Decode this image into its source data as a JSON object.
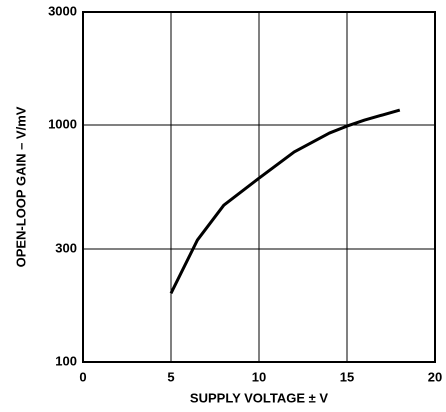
{
  "chart_data": {
    "type": "line",
    "x_label": "SUPPLY VOLTAGE ± V",
    "y_label": "OPEN-LOOP GAIN – V/mV",
    "x": [
      5,
      6.5,
      8,
      10,
      12,
      14,
      15,
      16,
      18
    ],
    "series": [
      {
        "color": "#000000",
        "values": [
          195,
          327,
          459,
          597,
          770,
          925,
          990,
          1050,
          1157
        ]
      }
    ],
    "xlim": [
      0,
      20
    ],
    "xticks": [
      0,
      5,
      10,
      15,
      20
    ],
    "ylim": [
      100,
      3000
    ],
    "yticks": [
      100,
      300,
      1000,
      3000
    ],
    "y_log": true,
    "grid": true
  }
}
